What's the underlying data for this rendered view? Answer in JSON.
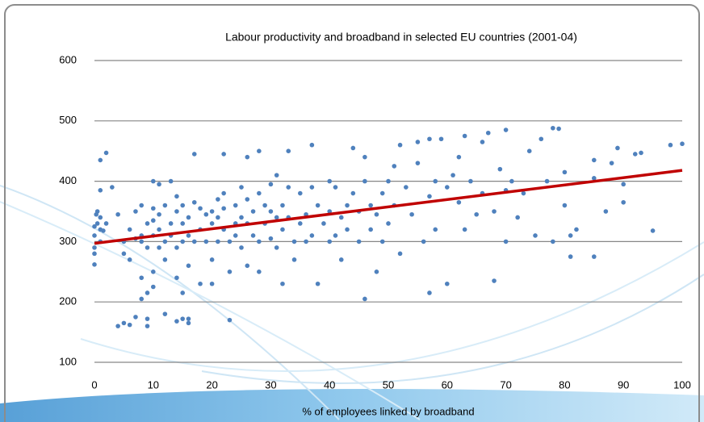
{
  "chart_data": {
    "type": "scatter",
    "title": "Labour productivity and broadband in selected EU countries (2001-04)",
    "x_label": "% of employees linked by broadband",
    "color": "#4f81bd",
    "xlim": [
      0,
      100
    ],
    "xticks": [
      0,
      10,
      20,
      30,
      40,
      50,
      60,
      70,
      80,
      90,
      100
    ],
    "ylim": [
      100,
      600
    ],
    "yticks": [
      100,
      200,
      300,
      400,
      500,
      600
    ],
    "grid": true,
    "trendline": {
      "x": [
        0,
        100
      ],
      "y": [
        297,
        418
      ],
      "color": "#c00000"
    },
    "x": [
      0,
      0,
      0,
      0,
      0,
      0.5,
      0.5,
      1,
      1,
      1,
      2,
      1,
      2,
      1.5,
      0.3,
      1,
      4,
      5,
      6,
      7,
      9,
      9,
      12,
      14,
      15,
      16,
      16,
      8,
      9,
      3,
      4,
      5,
      5,
      6,
      6,
      7,
      7,
      8,
      8,
      8,
      8,
      9,
      9,
      10,
      10,
      10,
      10,
      10,
      10,
      11,
      11,
      11,
      11,
      12,
      12,
      12,
      13,
      13,
      13,
      14,
      14,
      14,
      14,
      15,
      15,
      15,
      15,
      16,
      16,
      16,
      17,
      17,
      17,
      18,
      18,
      18,
      19,
      19,
      20,
      20,
      20,
      20,
      21,
      21,
      21,
      22,
      22,
      22,
      22,
      23,
      23,
      23,
      24,
      24,
      24,
      25,
      25,
      25,
      26,
      26,
      26,
      26,
      27,
      27,
      28,
      28,
      28,
      28,
      29,
      29,
      30,
      30,
      30,
      31,
      31,
      31,
      32,
      32,
      32,
      33,
      33,
      33,
      34,
      34,
      35,
      35,
      36,
      36,
      37,
      37,
      37,
      38,
      38,
      39,
      40,
      40,
      40,
      41,
      41,
      42,
      42,
      43,
      43,
      44,
      44,
      45,
      45,
      46,
      46,
      46,
      47,
      47,
      48,
      48,
      49,
      49,
      50,
      50,
      51,
      51,
      52,
      52,
      53,
      54,
      55,
      55,
      56,
      57,
      57,
      57,
      58,
      58,
      59,
      60,
      60,
      61,
      62,
      62,
      63,
      63,
      64,
      65,
      66,
      66,
      67,
      68,
      68,
      69,
      70,
      70,
      70,
      71,
      72,
      73,
      74,
      75,
      76,
      77,
      78,
      78,
      79,
      80,
      80,
      81,
      81,
      82,
      85,
      85,
      85,
      87,
      88,
      89,
      90,
      90,
      92,
      93,
      95,
      98,
      100
    ],
    "values": [
      325,
      310,
      290,
      280,
      262,
      330,
      350,
      320,
      300,
      435,
      447,
      385,
      330,
      318,
      345,
      340,
      160,
      165,
      162,
      175,
      172,
      160,
      180,
      168,
      172,
      165,
      172,
      205,
      215,
      390,
      345,
      300,
      280,
      270,
      320,
      305,
      350,
      360,
      300,
      240,
      310,
      330,
      290,
      400,
      355,
      335,
      310,
      250,
      225,
      395,
      345,
      320,
      290,
      360,
      300,
      270,
      400,
      330,
      310,
      375,
      350,
      290,
      240,
      360,
      330,
      300,
      215,
      340,
      310,
      260,
      445,
      365,
      300,
      355,
      320,
      230,
      345,
      300,
      350,
      330,
      270,
      230,
      370,
      340,
      300,
      445,
      380,
      355,
      320,
      300,
      250,
      170,
      360,
      330,
      310,
      390,
      340,
      290,
      440,
      370,
      330,
      260,
      350,
      310,
      450,
      380,
      300,
      250,
      360,
      330,
      395,
      350,
      305,
      410,
      340,
      290,
      360,
      320,
      230,
      450,
      390,
      340,
      300,
      270,
      380,
      330,
      345,
      300,
      460,
      390,
      310,
      360,
      230,
      330,
      400,
      350,
      300,
      390,
      310,
      340,
      270,
      360,
      320,
      455,
      380,
      350,
      300,
      205,
      440,
      400,
      360,
      320,
      345,
      250,
      380,
      300,
      400,
      330,
      425,
      360,
      280,
      460,
      390,
      345,
      465,
      430,
      300,
      470,
      375,
      215,
      400,
      320,
      470,
      390,
      230,
      410,
      365,
      440,
      475,
      320,
      400,
      345,
      465,
      380,
      480,
      350,
      235,
      420,
      485,
      385,
      300,
      400,
      340,
      380,
      450,
      310,
      470,
      400,
      300,
      488,
      487,
      415,
      360,
      275,
      310,
      320,
      275,
      435,
      405,
      350,
      430,
      455,
      395,
      365,
      445,
      447,
      318,
      460,
      462
    ]
  }
}
